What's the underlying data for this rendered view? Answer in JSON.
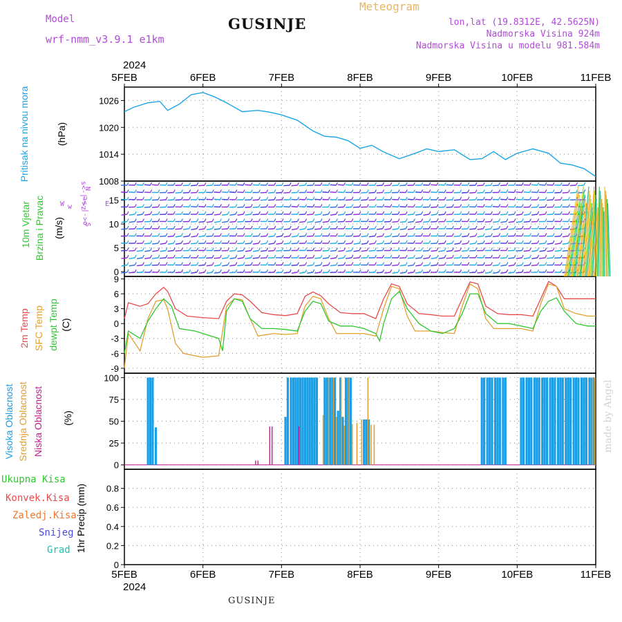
{
  "header": {
    "title": "GUSINJE",
    "model_label": "Model",
    "model_name": "wrf-nmm_v3.9.1 e1km",
    "meteogram_label": "Meteogram",
    "lonlat": "lon,lat (19.8312E, 42.5625N)",
    "altitude": "Nadmorska Visina 924m",
    "model_altitude": "Nadmorska Visina u modelu 981.584m",
    "year_top": "2024",
    "year_bottom": "2024",
    "footer_station": "GUSINJE",
    "credit": "made by Angel"
  },
  "colors": {
    "pressure": "#1aa5e6",
    "temp2m": "#e84a4a",
    "sfc_temp": "#e0a030",
    "dewpt": "#2ec82e",
    "high_cloud": "#1a9ee6",
    "mid_cloud": "#e0a030",
    "low_cloud": "#c0208a",
    "label_purple": "#b04ad8",
    "label_orange": "#e8b464"
  },
  "chart_data": [
    {
      "type": "line",
      "panel": "pressure",
      "labels": [
        "Pritisak na nivou mora",
        "(hPa)"
      ],
      "x_ticks": [
        "5FEB",
        "6FEB",
        "7FEB",
        "8FEB",
        "9FEB",
        "10FEB",
        "11FEB"
      ],
      "ylim": [
        1008,
        1029
      ],
      "yticks": [
        1008,
        1014,
        1020,
        1026
      ],
      "grid": true,
      "series": [
        {
          "x": [
            0,
            0.12,
            0.3,
            0.45,
            0.55,
            0.7,
            0.85,
            1.0,
            1.15,
            1.3,
            1.5,
            1.7,
            1.85,
            2.0,
            2.2,
            2.4,
            2.55,
            2.7,
            2.85,
            3.0,
            3.15,
            3.3,
            3.5,
            3.7,
            3.85,
            4.0,
            4.2,
            4.4,
            4.55,
            4.7,
            4.85,
            5.0,
            5.2,
            5.4,
            5.55,
            5.7,
            5.85,
            6.0
          ],
          "values": [
            1023.5,
            1024.5,
            1025.5,
            1025.8,
            1023.8,
            1025.2,
            1027.3,
            1027.8,
            1026.8,
            1025.5,
            1023.5,
            1023.8,
            1023.4,
            1022.8,
            1021.6,
            1019.2,
            1018.0,
            1017.8,
            1017.0,
            1015.3,
            1016.0,
            1014.5,
            1013.0,
            1014.2,
            1015.2,
            1014.6,
            1015.0,
            1012.8,
            1013.0,
            1014.6,
            1012.8,
            1014.2,
            1015.2,
            1014.2,
            1012.0,
            1011.6,
            1010.8,
            1009.0
          ]
        }
      ]
    },
    {
      "type": "barbs",
      "panel": "wind",
      "labels": [
        "10m Vjetar",
        "Brzina i Pravac",
        "(m/s)"
      ],
      "compass_labels": [
        "N",
        "E",
        "S",
        "W",
        "s<-|->z",
        "w",
        "o<-|->e"
      ],
      "ylim": [
        -1,
        19
      ],
      "yticks": [
        0,
        5,
        10,
        15
      ],
      "grid": true
    },
    {
      "type": "line",
      "panel": "temperature",
      "labels": [
        "2m Temp",
        "SFC Temp",
        "dewpt Temp",
        "(C)"
      ],
      "ylim": [
        -10,
        9.5
      ],
      "yticks": [
        -9,
        -6,
        -3,
        0,
        3,
        6,
        9
      ],
      "grid": true,
      "series": [
        {
          "name": "2m Temp",
          "x": [
            0,
            0.05,
            0.2,
            0.3,
            0.4,
            0.5,
            0.55,
            0.65,
            0.8,
            1.0,
            1.2,
            1.3,
            1.4,
            1.5,
            1.6,
            1.75,
            1.9,
            2.05,
            2.2,
            2.3,
            2.4,
            2.5,
            2.6,
            2.75,
            2.9,
            3.05,
            3.2,
            3.3,
            3.4,
            3.5,
            3.6,
            3.75,
            3.9,
            4.05,
            4.2,
            4.3,
            4.4,
            4.5,
            4.6,
            4.75,
            4.9,
            5.05,
            5.2,
            5.3,
            5.4,
            5.5,
            5.6,
            5.75,
            5.9,
            6.0
          ],
          "values": [
            1.0,
            4.2,
            3.5,
            4.0,
            6.0,
            7.3,
            6.5,
            3.0,
            1.5,
            1.2,
            1.0,
            4.5,
            6.0,
            5.8,
            4.5,
            2.2,
            1.8,
            1.6,
            2.0,
            5.5,
            6.4,
            5.6,
            4.0,
            2.2,
            2.0,
            2.0,
            1.0,
            5.0,
            8.0,
            7.5,
            4.0,
            2.0,
            1.8,
            1.5,
            1.5,
            5.0,
            8.4,
            8.0,
            3.5,
            2.0,
            1.8,
            1.8,
            1.5,
            5.0,
            8.5,
            7.5,
            5.0,
            5.0,
            5.0,
            5.0
          ]
        },
        {
          "name": "SFC Temp",
          "x": [
            0,
            0.05,
            0.2,
            0.3,
            0.4,
            0.5,
            0.55,
            0.65,
            0.75,
            0.9,
            1.0,
            1.2,
            1.3,
            1.4,
            1.5,
            1.6,
            1.7,
            1.9,
            2.05,
            2.2,
            2.3,
            2.4,
            2.5,
            2.6,
            2.7,
            2.9,
            3.05,
            3.2,
            3.3,
            3.4,
            3.5,
            3.6,
            3.7,
            3.9,
            4.05,
            4.2,
            4.3,
            4.4,
            4.5,
            4.6,
            4.7,
            4.9,
            5.05,
            5.2,
            5.3,
            5.4,
            5.5,
            5.6,
            5.75,
            5.9,
            6.0
          ],
          "values": [
            -9.0,
            -2.0,
            -5.5,
            1.0,
            4.5,
            4.8,
            3.0,
            -4.0,
            -6.0,
            -6.5,
            -6.8,
            -6.5,
            3.5,
            5.0,
            4.8,
            1.0,
            -2.5,
            -2.0,
            -2.2,
            -2.0,
            3.5,
            5.5,
            5.0,
            1.0,
            -2.0,
            -2.0,
            -2.0,
            -2.5,
            3.0,
            7.5,
            7.0,
            1.5,
            -1.5,
            -1.5,
            -1.8,
            -2.0,
            3.5,
            8.0,
            7.0,
            1.0,
            -1.0,
            -1.0,
            -1.0,
            -1.5,
            4.0,
            8.0,
            7.5,
            3.0,
            2.0,
            1.5,
            1.5
          ]
        },
        {
          "name": "dewpt Temp",
          "x": [
            0,
            0.05,
            0.2,
            0.3,
            0.4,
            0.5,
            0.6,
            0.7,
            0.9,
            1.0,
            1.2,
            1.25,
            1.3,
            1.4,
            1.5,
            1.6,
            1.75,
            1.9,
            2.05,
            2.2,
            2.3,
            2.4,
            2.5,
            2.6,
            2.75,
            2.9,
            3.05,
            3.2,
            3.25,
            3.3,
            3.4,
            3.5,
            3.6,
            3.75,
            3.9,
            4.05,
            4.2,
            4.3,
            4.4,
            4.5,
            4.6,
            4.75,
            4.9,
            5.05,
            5.2,
            5.3,
            5.4,
            5.5,
            5.6,
            5.75,
            5.9,
            6.0
          ],
          "values": [
            -6.0,
            -1.5,
            -3.0,
            0.5,
            3.0,
            5.0,
            3.5,
            -1.0,
            -1.5,
            -2.0,
            -3.0,
            -5.5,
            2.5,
            5.0,
            4.5,
            1.0,
            -1.0,
            -1.0,
            -1.2,
            -1.5,
            2.5,
            4.5,
            4.0,
            0.5,
            -0.5,
            -0.5,
            -1.0,
            -2.0,
            -3.5,
            0.0,
            5.0,
            6.5,
            3.0,
            0.0,
            -1.5,
            -2.0,
            -1.0,
            2.0,
            6.0,
            6.0,
            2.0,
            0.0,
            0.0,
            -0.5,
            -1.0,
            2.5,
            4.5,
            5.2,
            2.5,
            0.0,
            -0.5,
            -0.5
          ]
        }
      ]
    },
    {
      "type": "bar",
      "panel": "cloud",
      "labels": [
        "Visoka Oblacnost",
        "Srednja Oblacnost",
        "Niska Oblacnost",
        "(%)"
      ],
      "ylim": [
        -5,
        105
      ],
      "yticks": [
        0,
        25,
        50,
        75,
        100
      ],
      "grid": true,
      "series": [
        {
          "name": "Visoka Oblacnost",
          "x": [
            0.3,
            0.33,
            0.36,
            0.4,
            2.05,
            2.08,
            2.12,
            2.15,
            2.18,
            2.21,
            2.24,
            2.27,
            2.3,
            2.33,
            2.36,
            2.39,
            2.42,
            2.45,
            2.55,
            2.58,
            2.62,
            2.65,
            2.68,
            2.72,
            2.75,
            2.78,
            2.82,
            2.85,
            2.88,
            3.05,
            3.08,
            3.11,
            4.55,
            4.58,
            4.62,
            4.65,
            4.68,
            4.72,
            4.75,
            4.78,
            4.82,
            4.85,
            5.05,
            5.08,
            5.12,
            5.15,
            5.18,
            5.22,
            5.25,
            5.28,
            5.32,
            5.35,
            5.38,
            5.42,
            5.45,
            5.48,
            5.52,
            5.55,
            5.58,
            5.62,
            5.65,
            5.68,
            5.72,
            5.75,
            5.78,
            5.82,
            5.85,
            5.88,
            5.92,
            5.95,
            5.98
          ],
          "values": [
            100,
            100,
            100,
            43,
            55,
            100,
            100,
            100,
            100,
            100,
            100,
            100,
            100,
            100,
            100,
            100,
            100,
            100,
            100,
            100,
            100,
            100,
            100,
            62,
            100,
            55,
            100,
            100,
            100,
            52,
            52,
            52,
            100,
            100,
            100,
            100,
            100,
            100,
            100,
            100,
            100,
            100,
            100,
            100,
            100,
            100,
            100,
            100,
            100,
            100,
            100,
            100,
            100,
            100,
            100,
            100,
            100,
            100,
            100,
            100,
            100,
            100,
            100,
            100,
            100,
            100,
            100,
            100,
            100,
            100,
            100
          ]
        },
        {
          "name": "Srednja Oblacnost",
          "x": [
            2.53,
            2.6,
            2.66,
            2.7,
            2.76,
            2.8,
            2.86,
            2.9,
            2.96,
            3.02,
            3.1,
            3.14,
            3.18,
            5.96,
            5.99
          ],
          "values": [
            57,
            100,
            100,
            55,
            100,
            45,
            100,
            47,
            48,
            52,
            100,
            46,
            46,
            100,
            100
          ]
        },
        {
          "name": "Niska Oblacnost",
          "x": [
            1.67,
            1.7,
            1.85,
            1.88,
            2.22
          ],
          "values": [
            5,
            5,
            44,
            44,
            44
          ]
        }
      ]
    },
    {
      "type": "bar",
      "panel": "precip",
      "labels": [
        "Ukupna Kisa",
        "Konvek.Kisa",
        "Zaledj.Kisa",
        "Snijeg",
        "Grad",
        "1hr Precip (mm)"
      ],
      "ylim": [
        0,
        1.0
      ],
      "yticks": [
        0,
        0.2,
        0.4,
        0.6,
        0.8
      ],
      "grid": true,
      "series": []
    }
  ]
}
